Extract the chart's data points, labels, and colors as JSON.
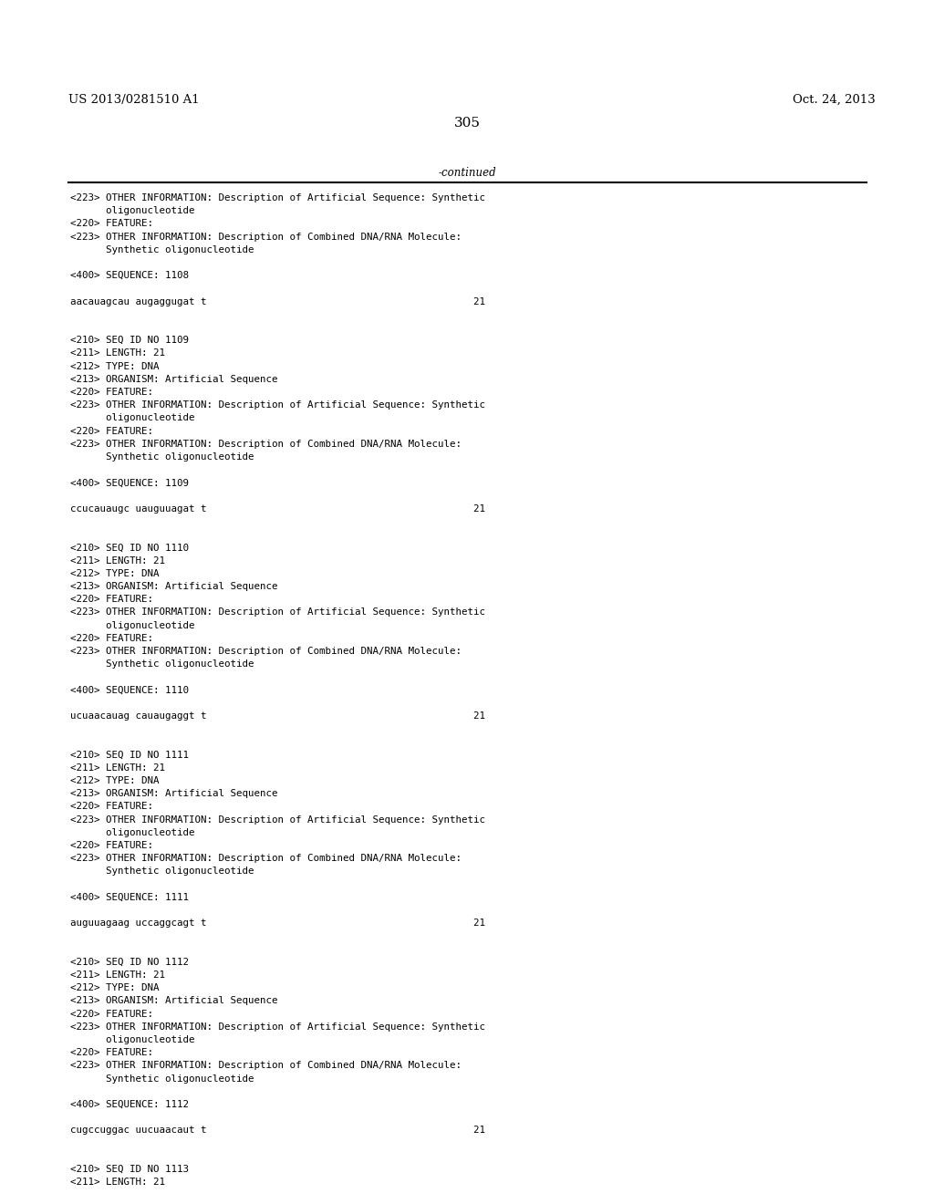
{
  "bg_color": "#ffffff",
  "header_left": "US 2013/0281510 A1",
  "header_right": "Oct. 24, 2013",
  "page_number": "305",
  "continued_label": "-continued",
  "lines": [
    "<223> OTHER INFORMATION: Description of Artificial Sequence: Synthetic",
    "      oligonucleotide",
    "<220> FEATURE:",
    "<223> OTHER INFORMATION: Description of Combined DNA/RNA Molecule:",
    "      Synthetic oligonucleotide",
    "",
    "<400> SEQUENCE: 1108",
    "",
    "aacauagcau augaggugat t                                             21",
    "",
    "",
    "<210> SEQ ID NO 1109",
    "<211> LENGTH: 21",
    "<212> TYPE: DNA",
    "<213> ORGANISM: Artificial Sequence",
    "<220> FEATURE:",
    "<223> OTHER INFORMATION: Description of Artificial Sequence: Synthetic",
    "      oligonucleotide",
    "<220> FEATURE:",
    "<223> OTHER INFORMATION: Description of Combined DNA/RNA Molecule:",
    "      Synthetic oligonucleotide",
    "",
    "<400> SEQUENCE: 1109",
    "",
    "ccucauaugc uauguuagat t                                             21",
    "",
    "",
    "<210> SEQ ID NO 1110",
    "<211> LENGTH: 21",
    "<212> TYPE: DNA",
    "<213> ORGANISM: Artificial Sequence",
    "<220> FEATURE:",
    "<223> OTHER INFORMATION: Description of Artificial Sequence: Synthetic",
    "      oligonucleotide",
    "<220> FEATURE:",
    "<223> OTHER INFORMATION: Description of Combined DNA/RNA Molecule:",
    "      Synthetic oligonucleotide",
    "",
    "<400> SEQUENCE: 1110",
    "",
    "ucuaacauag cauaugaggt t                                             21",
    "",
    "",
    "<210> SEQ ID NO 1111",
    "<211> LENGTH: 21",
    "<212> TYPE: DNA",
    "<213> ORGANISM: Artificial Sequence",
    "<220> FEATURE:",
    "<223> OTHER INFORMATION: Description of Artificial Sequence: Synthetic",
    "      oligonucleotide",
    "<220> FEATURE:",
    "<223> OTHER INFORMATION: Description of Combined DNA/RNA Molecule:",
    "      Synthetic oligonucleotide",
    "",
    "<400> SEQUENCE: 1111",
    "",
    "auguuagaag uccaggcagt t                                             21",
    "",
    "",
    "<210> SEQ ID NO 1112",
    "<211> LENGTH: 21",
    "<212> TYPE: DNA",
    "<213> ORGANISM: Artificial Sequence",
    "<220> FEATURE:",
    "<223> OTHER INFORMATION: Description of Artificial Sequence: Synthetic",
    "      oligonucleotide",
    "<220> FEATURE:",
    "<223> OTHER INFORMATION: Description of Combined DNA/RNA Molecule:",
    "      Synthetic oligonucleotide",
    "",
    "<400> SEQUENCE: 1112",
    "",
    "cugccuggac uucuaacaut t                                             21",
    "",
    "",
    "<210> SEQ ID NO 1113",
    "<211> LENGTH: 21"
  ]
}
